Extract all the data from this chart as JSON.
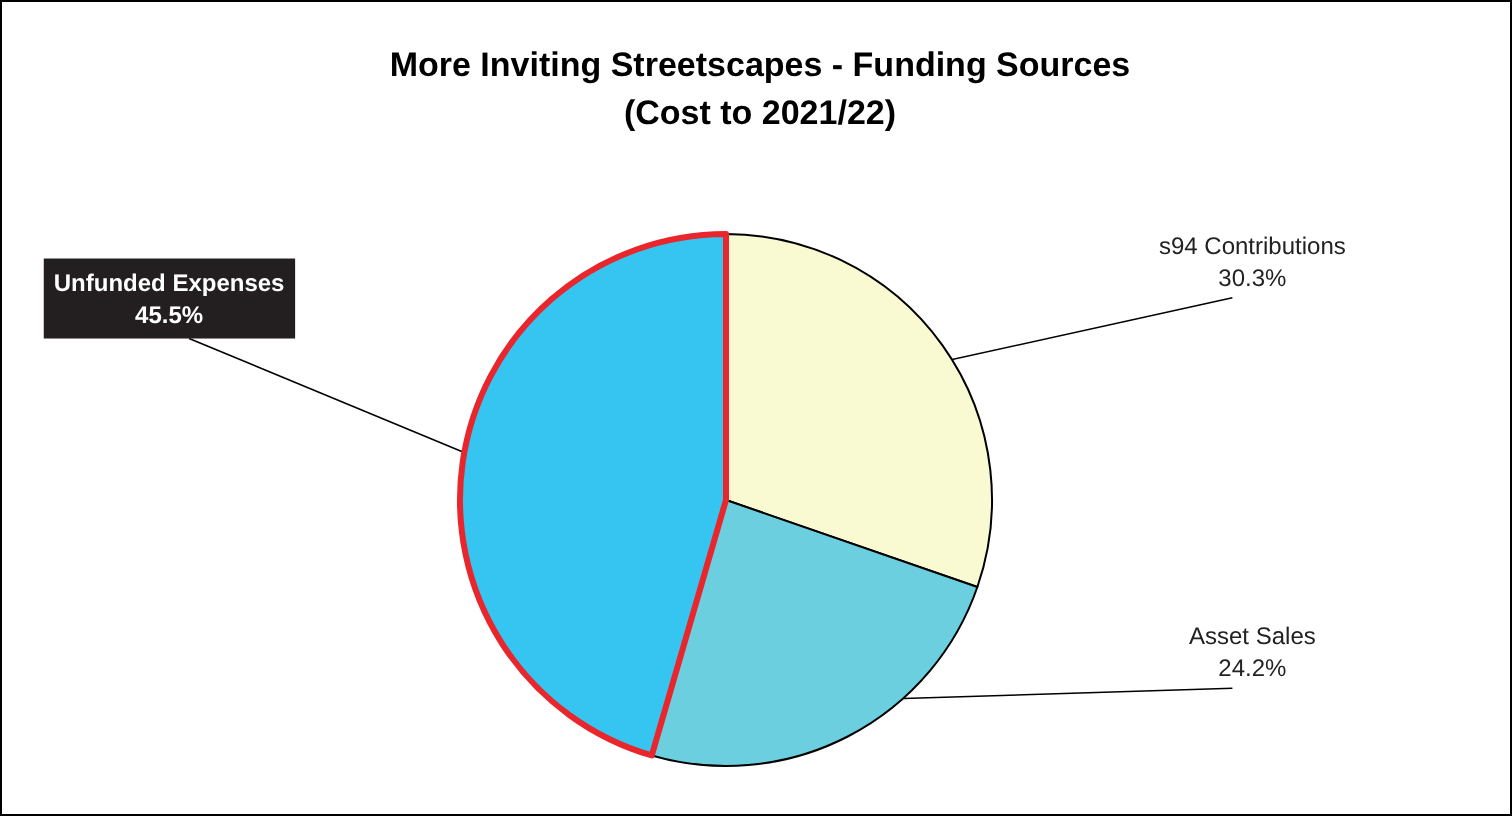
{
  "chart_data": {
    "type": "pie",
    "title": "More Inviting Streetscapes - Funding Sources",
    "subtitle": "(Cost to 2021/22)",
    "categories": [
      "s94 Contributions",
      "Asset Sales",
      "Unfunded Expenses"
    ],
    "values": [
      30.3,
      24.2,
      45.5
    ],
    "colors": [
      "#fafad2",
      "#6ccfe0",
      "#36c5f0"
    ],
    "value_labels": [
      "30.3%",
      "24.2%",
      "45.5%"
    ]
  }
}
